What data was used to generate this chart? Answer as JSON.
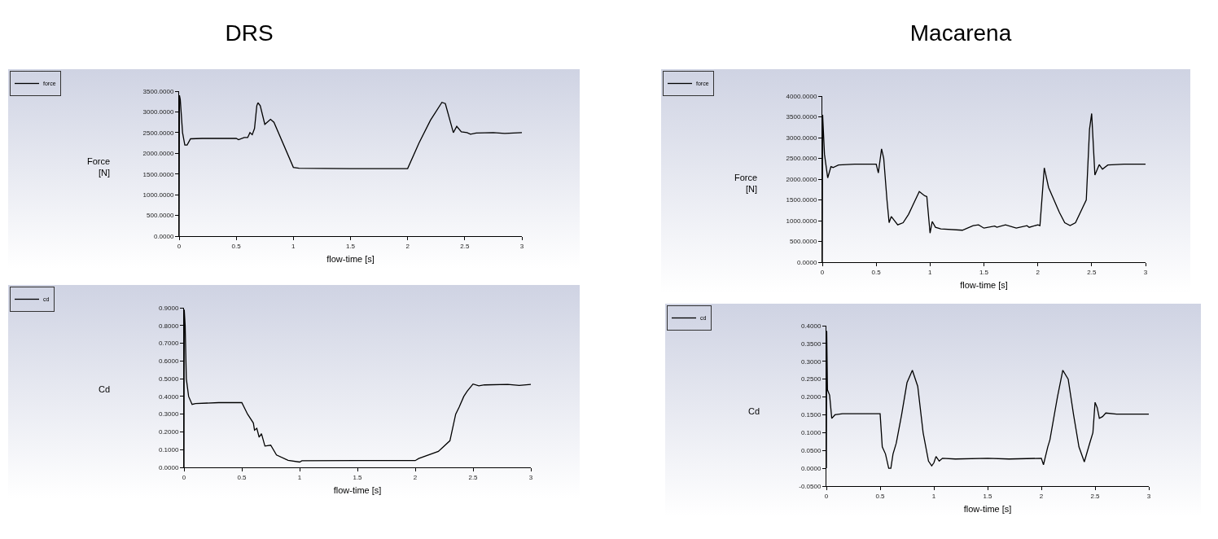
{
  "chart_data": [
    {
      "type": "line",
      "title": "DRS",
      "xlabel": "flow-time [s]",
      "ylabel": "Force\n[N]",
      "legend": "top left",
      "xlim": [
        0,
        3
      ],
      "xticks": [
        0,
        0.5,
        1,
        1.5,
        2,
        2.5,
        3
      ],
      "ylim": [
        0,
        3500
      ],
      "yticks": [
        {
          "value": 0,
          "label": "0.0000"
        },
        {
          "value": 500,
          "label": "500.0000"
        },
        {
          "value": 1000,
          "label": "1000.0000"
        },
        {
          "value": 1500,
          "label": "1500.0000"
        },
        {
          "value": 2000,
          "label": "2000.0000"
        },
        {
          "value": 2500,
          "label": "2500.0000"
        },
        {
          "value": 3000,
          "label": "3000.0000"
        },
        {
          "value": 3500,
          "label": "3500.0000"
        }
      ],
      "series": [
        {
          "name": "force",
          "color": "#000000",
          "x": [
            0,
            0.003,
            0.01,
            0.03,
            0.05,
            0.07,
            0.1,
            0.2,
            0.5,
            0.52,
            0.57,
            0.6,
            0.62,
            0.64,
            0.66,
            0.68,
            0.69,
            0.71,
            0.75,
            0.8,
            0.83,
            1.0,
            1.05,
            1.5,
            2.0,
            2.1,
            2.2,
            2.3,
            2.33,
            2.38,
            2.4,
            2.43,
            2.47,
            2.52,
            2.55,
            2.6,
            2.75,
            2.85,
            3.0
          ],
          "values": [
            0,
            3400,
            3300,
            2500,
            2200,
            2200,
            2350,
            2360,
            2360,
            2330,
            2380,
            2380,
            2500,
            2450,
            2600,
            3150,
            3220,
            3150,
            2700,
            2820,
            2750,
            1660,
            1640,
            1630,
            1630,
            2250,
            2800,
            3230,
            3200,
            2700,
            2500,
            2650,
            2520,
            2500,
            2460,
            2490,
            2500,
            2480,
            2500
          ]
        }
      ]
    },
    {
      "type": "line",
      "xlabel": "flow-time [s]",
      "ylabel": "Cd",
      "legend": "top left",
      "xlim": [
        0,
        3
      ],
      "xticks": [
        0,
        0.5,
        1,
        1.5,
        2,
        2.5,
        3
      ],
      "ylim": [
        0,
        0.9
      ],
      "yticks": [
        {
          "value": 0,
          "label": "0.0000"
        },
        {
          "value": 0.1,
          "label": "0.1000"
        },
        {
          "value": 0.2,
          "label": "0.2000"
        },
        {
          "value": 0.3,
          "label": "0.3000"
        },
        {
          "value": 0.4,
          "label": "0.4000"
        },
        {
          "value": 0.5,
          "label": "0.5000"
        },
        {
          "value": 0.6,
          "label": "0.6000"
        },
        {
          "value": 0.7,
          "label": "0.7000"
        },
        {
          "value": 0.8,
          "label": "0.8000"
        },
        {
          "value": 0.9,
          "label": "0.9000"
        }
      ],
      "series": [
        {
          "name": "cd",
          "color": "#000000",
          "x": [
            0,
            0.002,
            0.01,
            0.02,
            0.04,
            0.07,
            0.1,
            0.3,
            0.5,
            0.55,
            0.6,
            0.61,
            0.63,
            0.65,
            0.67,
            0.7,
            0.75,
            0.8,
            0.9,
            1.0,
            1.02,
            1.5,
            2.0,
            2.03,
            2.2,
            2.3,
            2.35,
            2.38,
            2.42,
            2.45,
            2.5,
            2.55,
            2.6,
            2.8,
            2.9,
            3.0
          ],
          "values": [
            0,
            0.89,
            0.8,
            0.5,
            0.4,
            0.355,
            0.36,
            0.365,
            0.365,
            0.3,
            0.25,
            0.21,
            0.22,
            0.17,
            0.19,
            0.12,
            0.125,
            0.07,
            0.04,
            0.03,
            0.037,
            0.038,
            0.038,
            0.05,
            0.09,
            0.15,
            0.3,
            0.34,
            0.4,
            0.43,
            0.47,
            0.46,
            0.465,
            0.468,
            0.462,
            0.468
          ]
        }
      ]
    },
    {
      "type": "line",
      "title": "Macarena",
      "xlabel": "flow-time [s]",
      "ylabel": "Force\n[N]",
      "legend": "top left",
      "xlim": [
        0,
        3
      ],
      "xticks": [
        0,
        0.5,
        1,
        1.5,
        2,
        2.5,
        3
      ],
      "ylim": [
        0,
        4000
      ],
      "yticks": [
        {
          "value": 0,
          "label": "0.0000"
        },
        {
          "value": 500,
          "label": "500.0000"
        },
        {
          "value": 1000,
          "label": "1000.0000"
        },
        {
          "value": 1500,
          "label": "1500.0000"
        },
        {
          "value": 2000,
          "label": "2000.0000"
        },
        {
          "value": 2500,
          "label": "2500.0000"
        },
        {
          "value": 3000,
          "label": "3000.0000"
        },
        {
          "value": 3500,
          "label": "3500.0000"
        },
        {
          "value": 4000,
          "label": "4000.0000"
        }
      ],
      "series": [
        {
          "name": "force",
          "color": "#000000",
          "x": [
            0,
            0.003,
            0.02,
            0.05,
            0.08,
            0.1,
            0.15,
            0.3,
            0.5,
            0.52,
            0.55,
            0.57,
            0.6,
            0.62,
            0.64,
            0.7,
            0.75,
            0.8,
            0.9,
            0.95,
            0.97,
            1.0,
            1.02,
            1.05,
            1.1,
            1.3,
            1.4,
            1.45,
            1.5,
            1.6,
            1.62,
            1.7,
            1.8,
            1.9,
            1.92,
            2.0,
            2.02,
            2.06,
            2.1,
            2.15,
            2.2,
            2.25,
            2.3,
            2.35,
            2.45,
            2.48,
            2.5,
            2.53,
            2.57,
            2.6,
            2.65,
            2.8,
            3.0
          ],
          "values": [
            0,
            3550,
            2600,
            2030,
            2300,
            2280,
            2340,
            2360,
            2360,
            2150,
            2730,
            2500,
            1500,
            950,
            1100,
            900,
            950,
            1150,
            1700,
            1600,
            1580,
            700,
            980,
            840,
            800,
            770,
            880,
            900,
            820,
            870,
            840,
            900,
            820,
            880,
            840,
            900,
            880,
            2270,
            1800,
            1500,
            1200,
            950,
            880,
            950,
            1500,
            3200,
            3580,
            2100,
            2350,
            2240,
            2340,
            2360,
            2360
          ]
        }
      ]
    },
    {
      "type": "line",
      "xlabel": "flow-time [s]",
      "ylabel": "Cd",
      "legend": "top left",
      "xlim": [
        0,
        3
      ],
      "xticks": [
        0,
        0.5,
        1,
        1.5,
        2,
        2.5,
        3
      ],
      "ylim": [
        -0.05,
        0.4
      ],
      "yticks": [
        {
          "value": -0.05,
          "label": "-0.0500"
        },
        {
          "value": 0,
          "label": "0.0000"
        },
        {
          "value": 0.05,
          "label": "0.0500"
        },
        {
          "value": 0.1,
          "label": "0.1000"
        },
        {
          "value": 0.15,
          "label": "0.1500"
        },
        {
          "value": 0.2,
          "label": "0.2000"
        },
        {
          "value": 0.25,
          "label": "0.2500"
        },
        {
          "value": 0.3,
          "label": "0.3000"
        },
        {
          "value": 0.35,
          "label": "0.3500"
        },
        {
          "value": 0.4,
          "label": "0.4000"
        }
      ],
      "series": [
        {
          "name": "cd",
          "color": "#000000",
          "x": [
            0,
            0.003,
            0.01,
            0.03,
            0.05,
            0.08,
            0.15,
            0.5,
            0.52,
            0.55,
            0.58,
            0.6,
            0.62,
            0.65,
            0.7,
            0.75,
            0.8,
            0.85,
            0.9,
            0.95,
            0.98,
            1.0,
            1.02,
            1.05,
            1.08,
            1.2,
            1.5,
            1.7,
            2.0,
            2.02,
            2.06,
            2.08,
            2.15,
            2.2,
            2.25,
            2.3,
            2.35,
            2.4,
            2.45,
            2.48,
            2.5,
            2.52,
            2.54,
            2.57,
            2.6,
            2.7,
            3.0
          ],
          "values": [
            0,
            0.385,
            0.22,
            0.205,
            0.14,
            0.15,
            0.153,
            0.153,
            0.06,
            0.04,
            0,
            0,
            0.04,
            0.07,
            0.15,
            0.24,
            0.275,
            0.23,
            0.1,
            0.02,
            0.007,
            0.015,
            0.033,
            0.02,
            0.028,
            0.026,
            0.028,
            0.026,
            0.028,
            0.01,
            0.06,
            0.08,
            0.2,
            0.275,
            0.25,
            0.15,
            0.06,
            0.018,
            0.07,
            0.1,
            0.185,
            0.17,
            0.14,
            0.145,
            0.155,
            0.152,
            0.152
          ]
        }
      ]
    }
  ]
}
